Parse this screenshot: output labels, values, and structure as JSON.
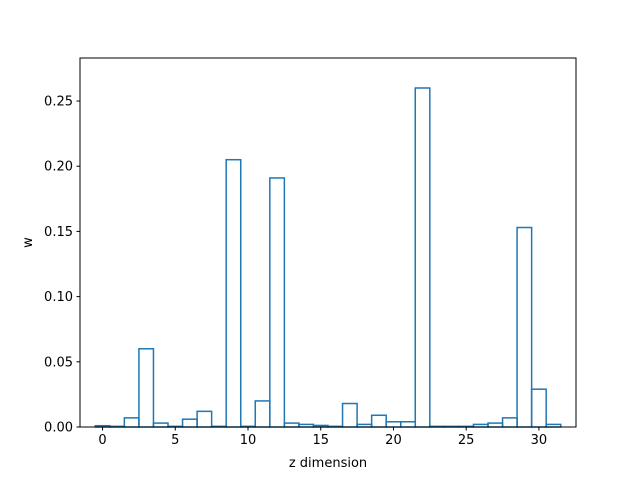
{
  "chart_data": {
    "type": "bar",
    "style": "step-histogram",
    "xlabel": "z dimension",
    "ylabel": "w",
    "xlim": [
      -1.55,
      32.55
    ],
    "ylim": [
      0,
      0.283
    ],
    "xticks": [
      0,
      5,
      10,
      15,
      20,
      25,
      30
    ],
    "yticks": [
      0.0,
      0.05,
      0.1,
      0.15,
      0.2,
      0.25
    ],
    "grid": false,
    "color": "#1f77b4",
    "bin_width": 1.0,
    "x": [
      0,
      1,
      2,
      3,
      4,
      5,
      6,
      7,
      8,
      9,
      10,
      11,
      12,
      13,
      14,
      15,
      16,
      17,
      18,
      19,
      20,
      21,
      22,
      23,
      24,
      25,
      26,
      27,
      28,
      29,
      30,
      31
    ],
    "values": [
      0.001,
      0.0005,
      0.007,
      0.06,
      0.003,
      0.0005,
      0.006,
      0.012,
      0.0005,
      0.205,
      0.0005,
      0.02,
      0.191,
      0.003,
      0.002,
      0.0012,
      0.0005,
      0.018,
      0.002,
      0.009,
      0.004,
      0.004,
      0.26,
      0.0005,
      0.0005,
      0.0005,
      0.002,
      0.003,
      0.007,
      0.153,
      0.029,
      0.002
    ]
  }
}
